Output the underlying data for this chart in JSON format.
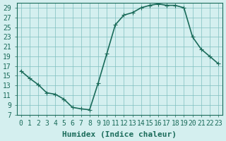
{
  "xlabel": "Humidex (Indice chaleur)",
  "ylabel": "",
  "x_values": [
    0,
    1,
    2,
    3,
    4,
    5,
    6,
    7,
    8,
    9,
    10,
    11,
    12,
    13,
    14,
    15,
    16,
    17,
    18,
    19,
    20,
    21,
    22,
    23
  ],
  "y_values": [
    16,
    14.5,
    13.2,
    11.5,
    11.2,
    10.2,
    8.5,
    8.2,
    8.0,
    13.5,
    19.5,
    25.5,
    27.5,
    28.0,
    29.0,
    29.5,
    29.8,
    29.5,
    29.5,
    29.0,
    23.0,
    20.5,
    19.0,
    17.5
  ],
  "ylim": [
    7,
    30
  ],
  "xlim": [
    -0.5,
    23.5
  ],
  "yticks": [
    7,
    9,
    11,
    13,
    15,
    17,
    19,
    21,
    23,
    25,
    27,
    29
  ],
  "xticks": [
    0,
    1,
    2,
    3,
    4,
    5,
    6,
    7,
    8,
    9,
    10,
    11,
    12,
    13,
    14,
    15,
    16,
    17,
    18,
    19,
    20,
    21,
    22,
    23
  ],
  "line_color": "#1a6b5a",
  "marker": "+",
  "marker_size": 4,
  "bg_color": "#d4efef",
  "grid_color": "#7fbfbf",
  "axis_color": "#1a6b5a",
  "xlabel_fontsize": 8,
  "tick_fontsize": 7,
  "line_width": 1.2
}
